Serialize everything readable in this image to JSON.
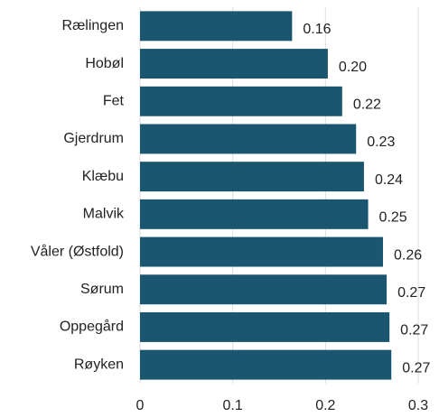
{
  "chart_data": {
    "type": "bar",
    "orientation": "horizontal",
    "categories": [
      "Rælingen",
      "Hobøl",
      "Fet",
      "Gjerdrum",
      "Klæbu",
      "Malvik",
      "Våler (Østfold)",
      "Sørum",
      "Oppegård",
      "Røyken"
    ],
    "values": [
      0.164,
      0.2025,
      0.218,
      0.233,
      0.2415,
      0.246,
      0.262,
      0.266,
      0.269,
      0.271
    ],
    "value_labels": [
      "0.16",
      "0.20",
      "0.22",
      "0.23",
      "0.24",
      "0.25",
      "0.26",
      "0.27",
      "0.27",
      "0.27"
    ],
    "color": "#1b5670",
    "xlim": [
      0,
      0.3
    ],
    "xticks": [
      0,
      0.1,
      0.2,
      0.3
    ],
    "grid": true
  }
}
